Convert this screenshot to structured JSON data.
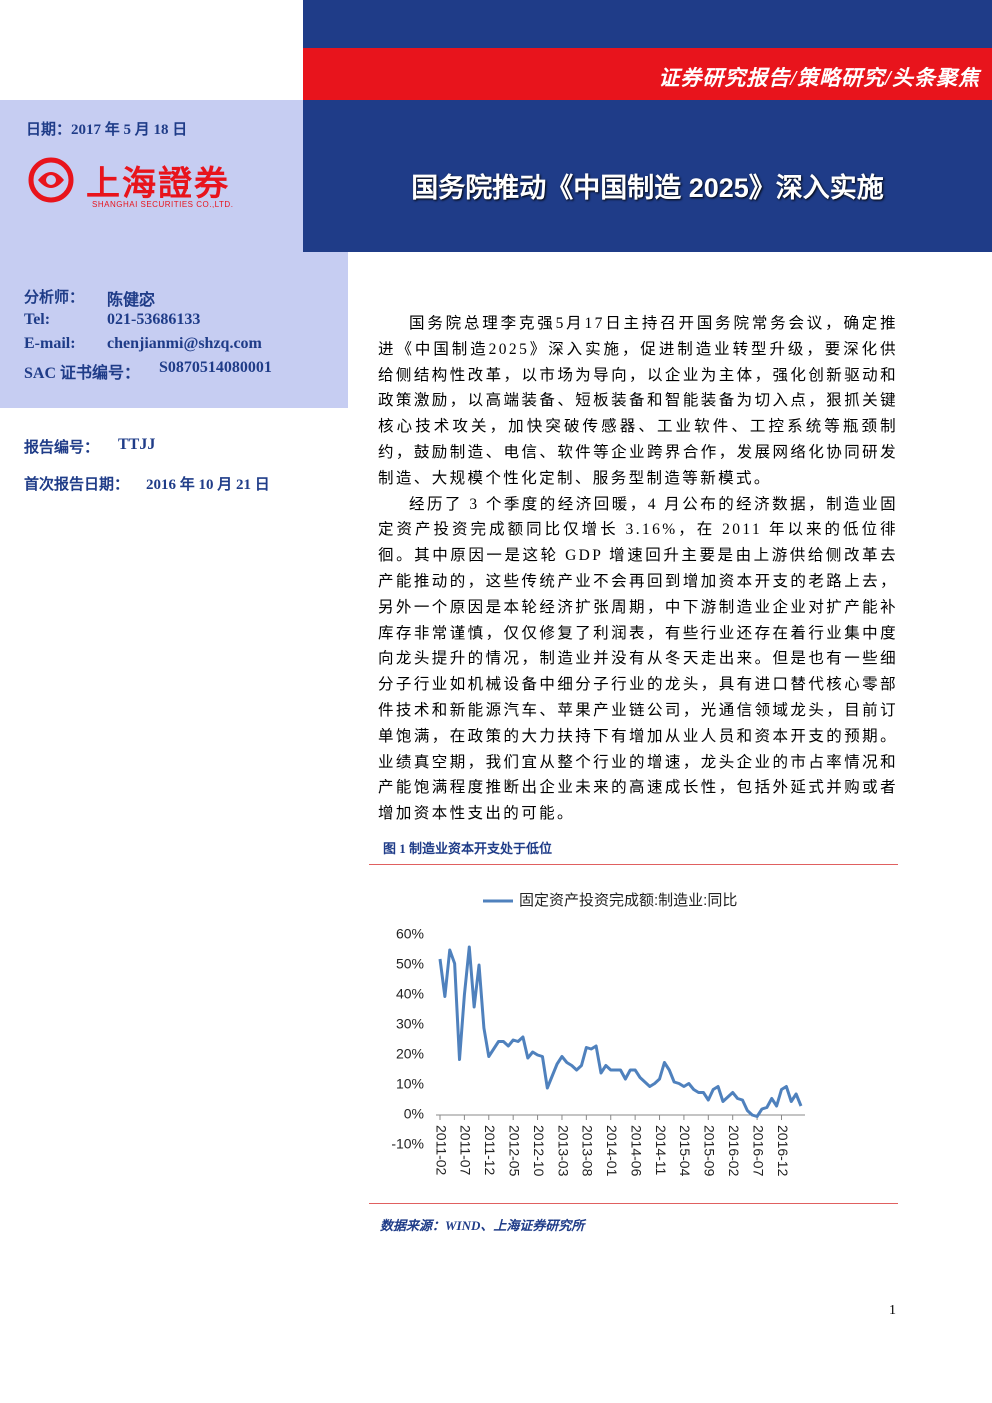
{
  "header": {
    "report_type": "证券研究报告/策略研究/头条聚焦",
    "date": "日期：2017 年 5 月 18 日",
    "logo_name": "上海證券",
    "logo_english": "SHANGHAI SECURITIES CO.,LTD.",
    "title": "国务院推动《中国制造 2025》深入实施"
  },
  "analyst": {
    "rows": [
      [
        "分析师：",
        "陈健宓"
      ],
      [
        "Tel:",
        "021-53686133"
      ],
      [
        "E-mail:",
        "chenjianmi@shzq.com"
      ],
      [
        "SAC 证书编号：",
        "S0870514080001"
      ]
    ]
  },
  "report_info": {
    "rows": [
      [
        "报告编号：",
        "TTJJ"
      ],
      [
        "首次报告日期：",
        "2016 年 10 月 21 日"
      ]
    ]
  },
  "body": {
    "paragraphs": [
      "国务院总理李克强5月17日主持召开国务院常务会议，确定推进《中国制造2025》深入实施，促进制造业转型升级，要深化供给侧结构性改革，以市场为导向，以企业为主体，强化创新驱动和政策激励，以高端装备、短板装备和智能装备为切入点，狠抓关键核心技术攻关，加快突破传感器、工业软件、工控系统等瓶颈制约，鼓励制造、电信、软件等企业跨界合作，发展网络化协同研发制造、大规模个性化定制、服务型制造等新模式。",
      "经历了 3 个季度的经济回暖，4 月公布的经济数据，制造业固定资产投资完成额同比仅增长 3.16%，在 2011 年以来的低位徘徊。其中原因一是这轮 GDP 增速回升主要是由上游供给侧改革去产能推动的，这些传统产业不会再回到增加资本开支的老路上去，另外一个原因是本轮经济扩张周期，中下游制造业企业对扩产能补库存非常谨慎，仅仅修复了利润表，有些行业还存在着行业集中度向龙头提升的情况，制造业并没有从冬天走出来。但是也有一些细分子行业如机械设备中细分子行业的龙头，具有进口替代核心零部件技术和新能源汽车、苹果产业链公司，光通信领域龙头，目前订单饱满，在政策的大力扶持下有增加从业人员和资本开支的预期。业绩真空期，我们宜从整个行业的增速，龙头企业的市占率情况和产能饱满程度推断出企业未来的高速成长性，包括外延式并购或者增加资本性支出的可能。"
    ]
  },
  "figure": {
    "caption": "图 1 制造业资本开支处于低位",
    "source": "数据来源：WIND、上海证券研究所"
  },
  "chart_data": {
    "type": "line",
    "categories": [
      "2011-02",
      null,
      null,
      null,
      null,
      "2011-07",
      null,
      null,
      null,
      null,
      "2011-12",
      null,
      null,
      null,
      null,
      "2012-05",
      null,
      null,
      null,
      null,
      "2012-10",
      null,
      null,
      null,
      null,
      "2013-03",
      null,
      null,
      null,
      null,
      "2013-08",
      null,
      null,
      null,
      null,
      "2014-01",
      null,
      null,
      null,
      null,
      "2014-06",
      null,
      null,
      null,
      null,
      "2014-11",
      null,
      null,
      null,
      null,
      "2015-04",
      null,
      null,
      null,
      null,
      "2015-09",
      null,
      null,
      null,
      null,
      "2016-02",
      null,
      null,
      null,
      null,
      "2016-07",
      null,
      null,
      null,
      null,
      "2016-12",
      null,
      null,
      null,
      null
    ],
    "series": [
      {
        "name": "固定资产投资完成额:制造业:同比",
        "color": "#4f81bd",
        "values": [
          52,
          39.5,
          55,
          50.5,
          18.5,
          40,
          56,
          36,
          50,
          29,
          19.5,
          22,
          24.5,
          24.5,
          23,
          25,
          24.5,
          26,
          19,
          21,
          20,
          19.5,
          9,
          13,
          17,
          19.5,
          17.5,
          16.5,
          15,
          16.5,
          22.5,
          22,
          23,
          14,
          16.5,
          15,
          15,
          15,
          12,
          15,
          15,
          12.5,
          11,
          9.5,
          10.5,
          12,
          17.5,
          15,
          11,
          10.5,
          9.5,
          10.5,
          8.5,
          7.5,
          7.5,
          5,
          8.5,
          9.5,
          4.5,
          6,
          7.5,
          5.5,
          5,
          1.5,
          0,
          -0.5,
          2,
          2.5,
          5.5,
          3,
          8.5,
          9.5,
          4.5,
          7,
          3
        ]
      }
    ],
    "ylim": [
      -10,
      60
    ],
    "yticks": [
      {
        "value": 60,
        "label": "60%"
      },
      {
        "value": 50,
        "label": "50%"
      },
      {
        "value": 40,
        "label": "40%"
      },
      {
        "value": 30,
        "label": "30%"
      },
      {
        "value": 20,
        "label": "20%"
      },
      {
        "value": 10,
        "label": "10%"
      },
      {
        "value": 0,
        "label": "0%"
      },
      {
        "value": -10,
        "label": "-10%"
      }
    ]
  },
  "page_number": "1"
}
